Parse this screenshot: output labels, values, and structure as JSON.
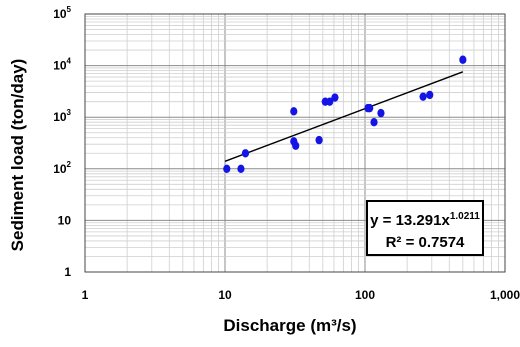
{
  "chart_data": {
    "type": "scatter",
    "title": "",
    "xlabel": "Discharge (m³/s)",
    "ylabel": "Sediment load (ton/day)",
    "x_scale": "log",
    "y_scale": "log",
    "xlim": [
      1,
      1000
    ],
    "ylim": [
      1,
      100000
    ],
    "x_ticks": [
      "1",
      "10",
      "100",
      "1,000"
    ],
    "y_ticks": [
      {
        "base": "1",
        "exp": ""
      },
      {
        "base": "10",
        "exp": ""
      },
      {
        "base": "10",
        "exp": "2"
      },
      {
        "base": "10",
        "exp": "3"
      },
      {
        "base": "10",
        "exp": "4"
      },
      {
        "base": "10",
        "exp": "5"
      }
    ],
    "grid": true,
    "marker_color": "#1414e6",
    "points": [
      {
        "x": 10.3,
        "y": 100
      },
      {
        "x": 13,
        "y": 100
      },
      {
        "x": 14,
        "y": 200
      },
      {
        "x": 31,
        "y": 1300
      },
      {
        "x": 31,
        "y": 340
      },
      {
        "x": 32,
        "y": 280
      },
      {
        "x": 47,
        "y": 360
      },
      {
        "x": 52,
        "y": 2000
      },
      {
        "x": 56,
        "y": 2000
      },
      {
        "x": 61,
        "y": 2400
      },
      {
        "x": 105,
        "y": 1500
      },
      {
        "x": 108,
        "y": 1500
      },
      {
        "x": 116,
        "y": 800
      },
      {
        "x": 130,
        "y": 1200
      },
      {
        "x": 260,
        "y": 2500
      },
      {
        "x": 290,
        "y": 2700
      },
      {
        "x": 500,
        "y": 13000
      }
    ],
    "trendline": {
      "a": 13.291,
      "b": 1.0211,
      "x_range": [
        10,
        500
      ]
    },
    "equation": {
      "base": "y = 13.291x",
      "exp": "1.0211",
      "r2": "R² = 0.7574"
    }
  }
}
